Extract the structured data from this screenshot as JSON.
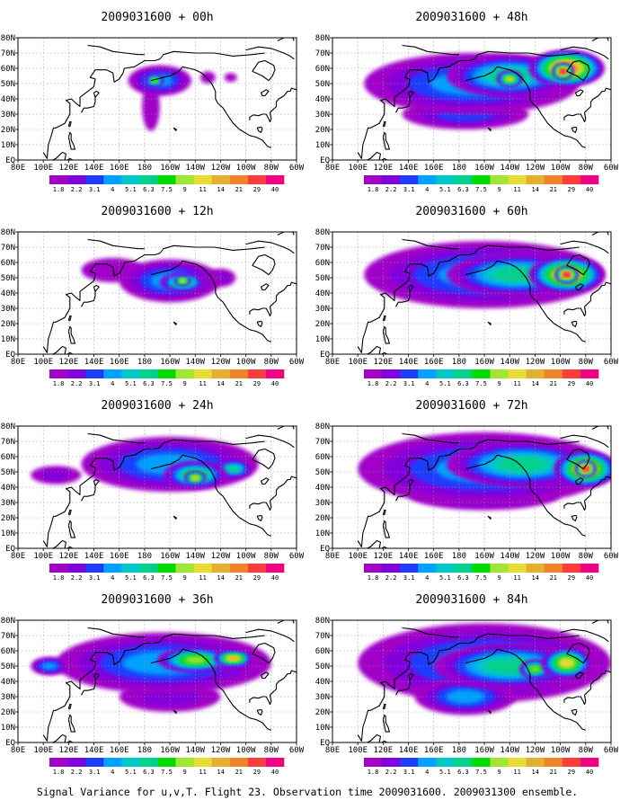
{
  "figure": {
    "caption": "Signal Variance for u,v,T. Flight 23. Observation time 2009031600. 2009031300 ensemble."
  },
  "colorbar": {
    "colors": [
      "#a000c8",
      "#8200dc",
      "#1e3cff",
      "#00a0ff",
      "#00c8c8",
      "#00d28c",
      "#00dc00",
      "#a0e632",
      "#e6dc32",
      "#e6af2d",
      "#f08228",
      "#fa3c3c",
      "#f00082"
    ],
    "labels": [
      "1.8",
      "2.2",
      "3.1",
      "4",
      "5.1",
      "6.3",
      "7.5",
      "9",
      "11",
      "14",
      "21",
      "29",
      "40"
    ]
  },
  "axes": {
    "xticks": [
      "80E",
      "100E",
      "120E",
      "140E",
      "160E",
      "180",
      "160W",
      "140W",
      "120W",
      "100W",
      "80W",
      "60W"
    ],
    "yticks": [
      "EQ",
      "10N",
      "20N",
      "30N",
      "40N",
      "50N",
      "60N",
      "70N",
      "80N"
    ]
  },
  "chart_data": [
    {
      "type": "heatmap",
      "title": "2009031600 + 00h",
      "lead_hours": 0,
      "xlim": [
        "80E",
        "60W"
      ],
      "ylim": [
        "EQ",
        "80N"
      ],
      "grid": true,
      "fields": [
        {
          "lon": -168,
          "lat": 52,
          "sx": 25,
          "sy": 10,
          "level": 4
        },
        {
          "lon": -172,
          "lat": 52,
          "sx": 7,
          "sy": 4,
          "level": 8
        },
        {
          "lon": -175,
          "lat": 35,
          "sx": 7,
          "sy": 16,
          "level": 1
        },
        {
          "lon": -130,
          "lat": 54,
          "sx": 6,
          "sy": 4,
          "level": 1
        },
        {
          "lon": -112,
          "lat": 54,
          "sx": 5,
          "sy": 3,
          "level": 1
        }
      ]
    },
    {
      "type": "heatmap",
      "title": "2009031600 + 48h",
      "lead_hours": 48,
      "xlim": [
        "80E",
        "60W"
      ],
      "ylim": [
        "EQ",
        "80N"
      ],
      "grid": true,
      "fields": [
        {
          "lon": -170,
          "lat": 50,
          "sx": 85,
          "sy": 20,
          "level": 4
        },
        {
          "lon": -140,
          "lat": 55,
          "sx": 50,
          "sy": 14,
          "level": 6
        },
        {
          "lon": -95,
          "lat": 60,
          "sx": 30,
          "sy": 12,
          "level": 11
        },
        {
          "lon": -98,
          "lat": 58,
          "sx": 8,
          "sy": 5,
          "level": 13
        },
        {
          "lon": -140,
          "lat": 53,
          "sx": 10,
          "sy": 5,
          "level": 9
        },
        {
          "lon": -175,
          "lat": 30,
          "sx": 50,
          "sy": 10,
          "level": 3
        }
      ]
    },
    {
      "type": "heatmap",
      "title": "2009031600 + 12h",
      "lead_hours": 12,
      "xlim": [
        "80E",
        "60W"
      ],
      "ylim": [
        "EQ",
        "80N"
      ],
      "grid": true,
      "fields": [
        {
          "lon": -160,
          "lat": 48,
          "sx": 40,
          "sy": 14,
          "level": 4
        },
        {
          "lon": -150,
          "lat": 47,
          "sx": 18,
          "sy": 6,
          "level": 7
        },
        {
          "lon": -150,
          "lat": 48,
          "sx": 6,
          "sy": 3,
          "level": 10
        },
        {
          "lon": -120,
          "lat": 50,
          "sx": 12,
          "sy": 6,
          "level": 2
        },
        {
          "lon": 155,
          "lat": 55,
          "sx": 25,
          "sy": 8,
          "level": 1
        }
      ]
    },
    {
      "type": "heatmap",
      "title": "2009031600 + 60h",
      "lead_hours": 60,
      "xlim": [
        "80E",
        "60W"
      ],
      "ylim": [
        "EQ",
        "80N"
      ],
      "grid": true,
      "fields": [
        {
          "lon": -160,
          "lat": 52,
          "sx": 95,
          "sy": 22,
          "level": 4
        },
        {
          "lon": -135,
          "lat": 52,
          "sx": 55,
          "sy": 14,
          "level": 6
        },
        {
          "lon": -95,
          "lat": 52,
          "sx": 30,
          "sy": 12,
          "level": 10
        },
        {
          "lon": -95,
          "lat": 52,
          "sx": 9,
          "sy": 5,
          "level": 13
        },
        {
          "lon": -150,
          "lat": 62,
          "sx": 40,
          "sy": 8,
          "level": 3
        }
      ]
    },
    {
      "type": "heatmap",
      "title": "2009031600 + 24h",
      "lead_hours": 24,
      "xlim": [
        "80E",
        "60W"
      ],
      "ylim": [
        "EQ",
        "80N"
      ],
      "grid": true,
      "fields": [
        {
          "lon": -160,
          "lat": 55,
          "sx": 70,
          "sy": 18,
          "level": 4
        },
        {
          "lon": -140,
          "lat": 48,
          "sx": 25,
          "sy": 9,
          "level": 7
        },
        {
          "lon": -140,
          "lat": 46,
          "sx": 8,
          "sy": 4,
          "level": 10
        },
        {
          "lon": -110,
          "lat": 52,
          "sx": 15,
          "sy": 6,
          "level": 6
        },
        {
          "lon": 110,
          "lat": 48,
          "sx": 20,
          "sy": 6,
          "level": 2
        }
      ]
    },
    {
      "type": "heatmap",
      "title": "2009031600 + 72h",
      "lead_hours": 72,
      "xlim": [
        "80E",
        "60W"
      ],
      "ylim": [
        "EQ",
        "80N"
      ],
      "grid": true,
      "fields": [
        {
          "lon": -160,
          "lat": 52,
          "sx": 100,
          "sy": 24,
          "level": 4
        },
        {
          "lon": -130,
          "lat": 55,
          "sx": 60,
          "sy": 15,
          "level": 6
        },
        {
          "lon": -80,
          "lat": 52,
          "sx": 25,
          "sy": 12,
          "level": 10
        },
        {
          "lon": -80,
          "lat": 52,
          "sx": 8,
          "sy": 5,
          "level": 13
        },
        {
          "lon": -160,
          "lat": 35,
          "sx": 60,
          "sy": 10,
          "level": 3
        }
      ]
    },
    {
      "type": "heatmap",
      "title": "2009031600 + 36h",
      "lead_hours": 36,
      "xlim": [
        "80E",
        "60W"
      ],
      "ylim": [
        "EQ",
        "80N"
      ],
      "grid": true,
      "fields": [
        {
          "lon": -165,
          "lat": 52,
          "sx": 85,
          "sy": 20,
          "level": 4
        },
        {
          "lon": -140,
          "lat": 54,
          "sx": 30,
          "sy": 8,
          "level": 8
        },
        {
          "lon": -110,
          "lat": 55,
          "sx": 15,
          "sy": 5,
          "level": 10
        },
        {
          "lon": 105,
          "lat": 50,
          "sx": 15,
          "sy": 6,
          "level": 4
        },
        {
          "lon": -160,
          "lat": 30,
          "sx": 40,
          "sy": 10,
          "level": 2
        }
      ]
    },
    {
      "type": "heatmap",
      "title": "2009031600 + 84h",
      "lead_hours": 84,
      "xlim": [
        "80E",
        "60W"
      ],
      "ylim": [
        "EQ",
        "80N"
      ],
      "grid": true,
      "fields": [
        {
          "lon": -160,
          "lat": 52,
          "sx": 100,
          "sy": 26,
          "level": 4
        },
        {
          "lon": -140,
          "lat": 50,
          "sx": 60,
          "sy": 15,
          "level": 6
        },
        {
          "lon": -95,
          "lat": 52,
          "sx": 20,
          "sy": 10,
          "level": 9
        },
        {
          "lon": -120,
          "lat": 48,
          "sx": 12,
          "sy": 6,
          "level": 8
        },
        {
          "lon": -175,
          "lat": 30,
          "sx": 40,
          "sy": 12,
          "level": 4
        }
      ]
    }
  ]
}
